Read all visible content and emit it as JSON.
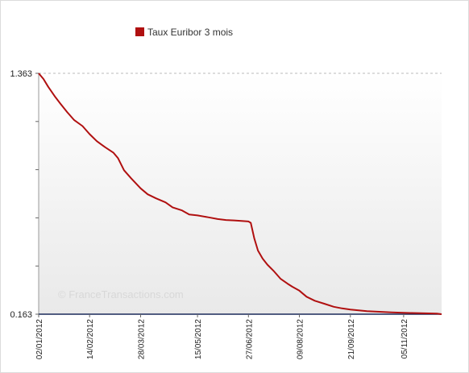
{
  "chart_data": {
    "type": "line",
    "title": "",
    "xlabel": "",
    "ylabel": "",
    "legend_position": "top-left",
    "grid": false,
    "ylim": [
      0.163,
      1.363
    ],
    "y_ticks_labeled": [
      "1.363",
      "0.163"
    ],
    "x_tick_labels": [
      "02/01/2012",
      "14/02/2012",
      "28/03/2012",
      "15/05/2012",
      "27/06/2012",
      "09/08/2012",
      "21/09/2012",
      "05/11/2012"
    ],
    "series": [
      {
        "name": "Taux Euribor 3 mois",
        "color": "#b01010",
        "x": [
          "2012-01-02",
          "2012-01-06",
          "2012-01-10",
          "2012-01-16",
          "2012-01-20",
          "2012-01-26",
          "2012-02-01",
          "2012-02-08",
          "2012-02-14",
          "2012-02-20",
          "2012-02-27",
          "2012-03-05",
          "2012-03-09",
          "2012-03-14",
          "2012-03-20",
          "2012-03-28",
          "2012-04-03",
          "2012-04-10",
          "2012-04-18",
          "2012-04-24",
          "2012-05-02",
          "2012-05-08",
          "2012-05-15",
          "2012-05-24",
          "2012-06-01",
          "2012-06-08",
          "2012-06-15",
          "2012-06-20",
          "2012-06-27",
          "2012-06-29",
          "2012-07-02",
          "2012-07-05",
          "2012-07-09",
          "2012-07-13",
          "2012-07-18",
          "2012-07-24",
          "2012-07-30",
          "2012-08-03",
          "2012-08-09",
          "2012-08-15",
          "2012-08-22",
          "2012-08-30",
          "2012-09-07",
          "2012-09-14",
          "2012-09-21",
          "2012-09-28",
          "2012-10-05",
          "2012-10-12",
          "2012-10-19",
          "2012-10-26",
          "2012-11-05",
          "2012-11-12",
          "2012-11-19",
          "2012-11-26",
          "2012-12-03",
          "2012-12-07"
        ],
        "values": [
          1.363,
          1.335,
          1.296,
          1.245,
          1.214,
          1.17,
          1.13,
          1.1,
          1.06,
          1.025,
          0.995,
          0.968,
          0.94,
          0.88,
          0.84,
          0.79,
          0.76,
          0.74,
          0.72,
          0.695,
          0.68,
          0.66,
          0.655,
          0.646,
          0.637,
          0.632,
          0.63,
          0.628,
          0.625,
          0.618,
          0.54,
          0.48,
          0.44,
          0.41,
          0.38,
          0.34,
          0.315,
          0.3,
          0.28,
          0.25,
          0.23,
          0.215,
          0.2,
          0.192,
          0.186,
          0.182,
          0.178,
          0.176,
          0.174,
          0.172,
          0.17,
          0.169,
          0.168,
          0.167,
          0.166,
          0.163
        ]
      }
    ],
    "watermark": "© FranceTransactions.com"
  }
}
